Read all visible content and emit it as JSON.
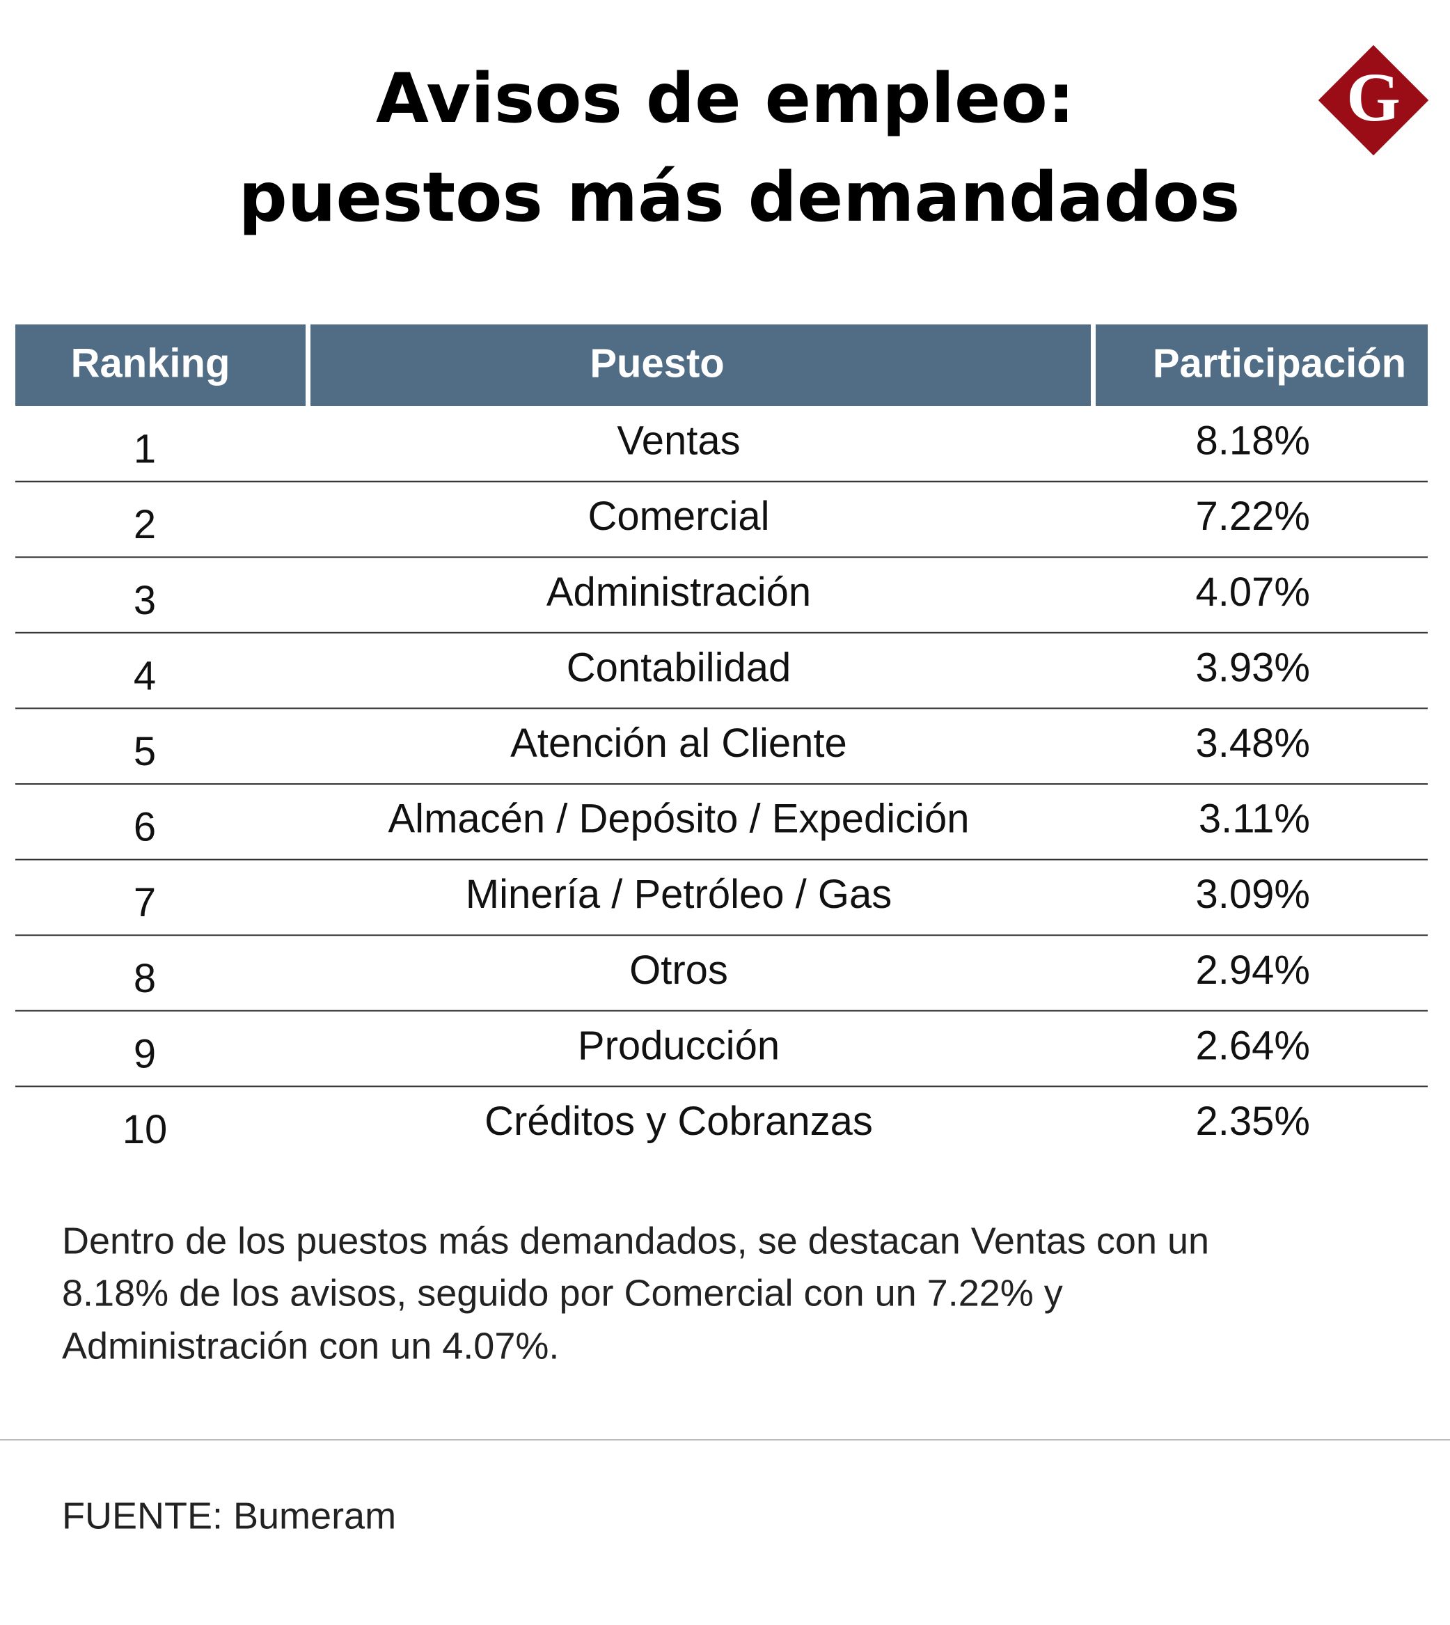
{
  "header": {
    "title": [
      "Avisos de empleo:",
      "puestos más demandados"
    ],
    "logo": "G"
  },
  "table": {
    "headers": [
      "Ranking",
      "Puesto",
      "Participación"
    ],
    "rows": [
      [
        "1",
        "Ventas",
        "8.18%"
      ],
      [
        "2",
        "Comercial",
        "7.22%"
      ],
      [
        "3",
        "Administración",
        "4.07%"
      ],
      [
        "4",
        "Contabilidad",
        "3.93%"
      ],
      [
        "5",
        "Atención al Cliente",
        "3.48%"
      ],
      [
        "6",
        "Almacén / Depósito / Expedición",
        "3.11%"
      ],
      [
        "7",
        "Minería / Petróleo / Gas",
        "3.09%"
      ],
      [
        "8",
        "Otros",
        "2.94%"
      ],
      [
        "9",
        "Producción",
        "2.64%"
      ],
      [
        "10",
        "Créditos y Cobranzas",
        "2.35%"
      ]
    ]
  },
  "note": [
    "Dentro de los puestos más demandados, se destacan Ventas con un",
    "8.18% de los avisos, seguido por Comercial con un 7.22% y",
    "Administración con un 4.07%."
  ],
  "source": "FUENTE: Bumeram"
}
